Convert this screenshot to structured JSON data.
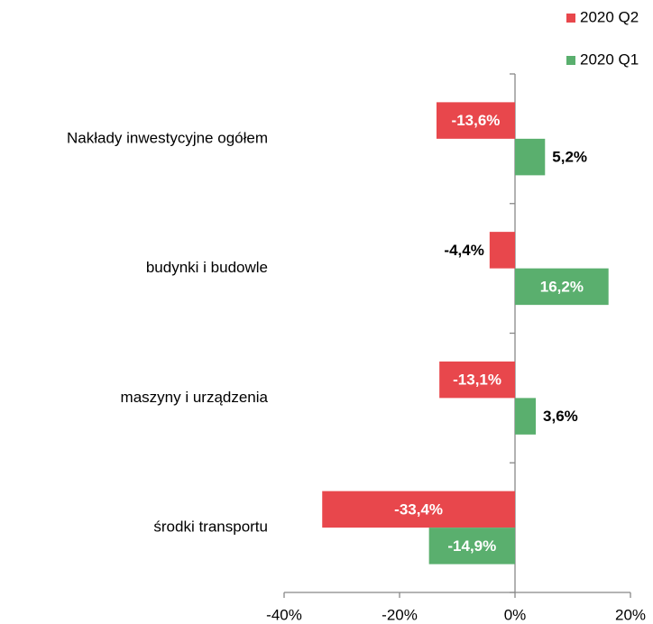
{
  "chart_data": {
    "type": "bar",
    "orientation": "horizontal",
    "categories": [
      "Nakłady inwestycyjne ogółem",
      "budynki i budowle",
      "maszyny i urządzenia",
      "środki transportu"
    ],
    "series": [
      {
        "name": "2020 Q2",
        "color": "#e8474c",
        "values": [
          -13.6,
          -4.4,
          -13.1,
          -33.4
        ],
        "value_labels": [
          "-13,6%",
          "-4,4%",
          "-13,1%",
          "-33,4%"
        ]
      },
      {
        "name": "2020 Q1",
        "color": "#5aaf6e",
        "values": [
          5.2,
          16.2,
          3.6,
          -14.9
        ],
        "value_labels": [
          "5,2%",
          "16,2%",
          "3,6%",
          "-14,9%"
        ]
      }
    ],
    "xlim": [
      -40,
      20
    ],
    "xticks": [
      {
        "value": -40,
        "label": "-40%"
      },
      {
        "value": -20,
        "label": "-20%"
      },
      {
        "value": 0,
        "label": "0%"
      },
      {
        "value": 20,
        "label": "20%"
      }
    ],
    "legend": "top-right"
  }
}
